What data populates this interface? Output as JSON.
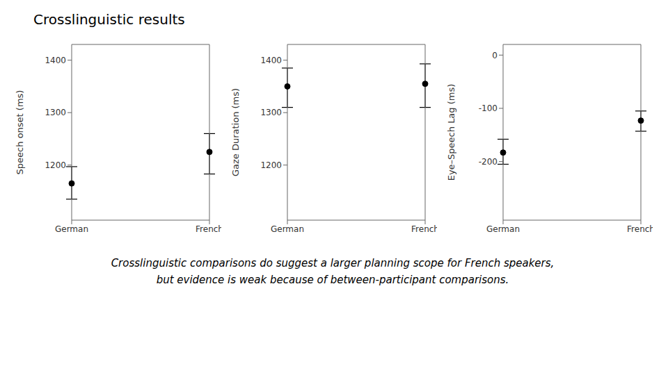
{
  "title": "Crosslinguistic results",
  "subtitle": [
    "Crosslinguistic comparisons do suggest a larger planning scope for French speakers,",
    "but evidence is weak because of between-participant comparisons."
  ],
  "chart_data": [
    {
      "type": "scatter",
      "ylabel": "Speech onset (ms)",
      "categories": [
        "German",
        "French"
      ],
      "values": [
        1165,
        1225
      ],
      "ci_lower": [
        1135,
        1183
      ],
      "ci_upper": [
        1197,
        1260
      ],
      "ylim": [
        1095,
        1430
      ],
      "yticks": [
        1200,
        1300,
        1400
      ],
      "color": "#000000",
      "grid": false
    },
    {
      "type": "scatter",
      "ylabel": "Gaze Duration (ms)",
      "categories": [
        "German",
        "French"
      ],
      "values": [
        1350,
        1355
      ],
      "ci_lower": [
        1310,
        1310
      ],
      "ci_upper": [
        1385,
        1393
      ],
      "ylim": [
        1095,
        1430
      ],
      "yticks": [
        1200,
        1300,
        1400
      ],
      "color": "#000000",
      "grid": false
    },
    {
      "type": "scatter",
      "ylabel": "Eye–Speech Lag (ms)",
      "categories": [
        "German",
        "French"
      ],
      "values": [
        -183,
        -123
      ],
      "ci_lower": [
        -205,
        -143
      ],
      "ci_upper": [
        -158,
        -105
      ],
      "ylim": [
        -310,
        20
      ],
      "yticks": [
        0,
        -100,
        -200
      ],
      "color": "#000000",
      "grid": false
    }
  ]
}
